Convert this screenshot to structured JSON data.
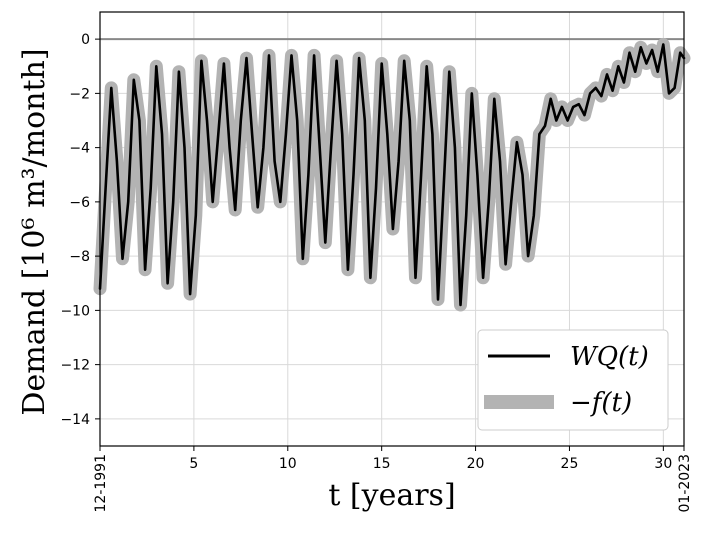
{
  "chart_data": {
    "type": "line",
    "xlabel": "t [years]",
    "ylabel": "Demand [10⁶ m³/month]",
    "xlim": [
      0,
      31.1
    ],
    "ylim": [
      -15,
      1
    ],
    "xticks": [
      {
        "value": 0,
        "label": "12-1991",
        "rotated": true
      },
      {
        "value": 5,
        "label": "5"
      },
      {
        "value": 10,
        "label": "10"
      },
      {
        "value": 15,
        "label": "15"
      },
      {
        "value": 20,
        "label": "20"
      },
      {
        "value": 25,
        "label": "25"
      },
      {
        "value": 30,
        "label": "30"
      },
      {
        "value": 31.1,
        "label": "01-2023",
        "rotated": true
      }
    ],
    "yticks": [
      0,
      -2,
      -4,
      -6,
      -8,
      -10,
      -12,
      -14
    ],
    "ytick_labels": [
      "0",
      "−2",
      "−4",
      "−6",
      "−8",
      "−10",
      "−12",
      "−14"
    ],
    "grid": true,
    "reference_line": {
      "y": 0,
      "color": "#888888"
    },
    "legend": {
      "position": "bottom-right"
    },
    "series": [
      {
        "name": "WQ(t)",
        "color": "#000000",
        "style": "thin-line",
        "x": [
          0.0,
          0.3,
          0.6,
          0.9,
          1.2,
          1.5,
          1.8,
          2.1,
          2.4,
          2.7,
          3.0,
          3.3,
          3.6,
          3.9,
          4.2,
          4.5,
          4.8,
          5.1,
          5.4,
          5.7,
          6.0,
          6.3,
          6.6,
          6.9,
          7.2,
          7.5,
          7.8,
          8.1,
          8.4,
          8.7,
          9.0,
          9.3,
          9.6,
          9.9,
          10.2,
          10.5,
          10.8,
          11.1,
          11.4,
          11.7,
          12.0,
          12.3,
          12.6,
          12.9,
          13.2,
          13.5,
          13.8,
          14.1,
          14.4,
          14.7,
          15.0,
          15.3,
          15.6,
          15.9,
          16.2,
          16.5,
          16.8,
          17.1,
          17.4,
          17.7,
          18.0,
          18.3,
          18.6,
          18.9,
          19.2,
          19.5,
          19.8,
          20.1,
          20.4,
          20.7,
          21.0,
          21.3,
          21.6,
          21.9,
          22.2,
          22.5,
          22.8,
          23.1,
          23.4,
          23.7,
          24.0,
          24.3,
          24.6,
          24.9,
          25.2,
          25.5,
          25.8,
          26.1,
          26.4,
          26.7,
          27.0,
          27.3,
          27.6,
          27.9,
          28.2,
          28.5,
          28.8,
          29.1,
          29.4,
          29.7,
          30.0,
          30.3,
          30.6,
          30.9,
          31.1
        ],
        "y": [
          -9.2,
          -5.5,
          -1.8,
          -4.5,
          -8.1,
          -6.0,
          -1.5,
          -3.0,
          -8.5,
          -5.5,
          -1.0,
          -3.5,
          -9.0,
          -6.0,
          -1.2,
          -4.0,
          -9.4,
          -6.5,
          -0.8,
          -3.0,
          -6.0,
          -3.5,
          -0.9,
          -4.0,
          -6.3,
          -3.0,
          -0.7,
          -3.5,
          -6.2,
          -4.0,
          -0.6,
          -4.5,
          -6.0,
          -3.5,
          -0.6,
          -3.0,
          -8.1,
          -5.0,
          -0.6,
          -4.0,
          -7.5,
          -4.0,
          -0.8,
          -3.5,
          -8.5,
          -5.0,
          -0.7,
          -3.0,
          -8.8,
          -5.5,
          -0.9,
          -3.5,
          -7.0,
          -4.5,
          -0.8,
          -3.0,
          -8.8,
          -5.0,
          -1.0,
          -3.5,
          -9.6,
          -5.5,
          -1.2,
          -4.0,
          -9.8,
          -6.5,
          -2.0,
          -5.0,
          -8.8,
          -6.0,
          -2.2,
          -4.5,
          -8.3,
          -6.0,
          -3.8,
          -5.0,
          -8.0,
          -6.5,
          -3.5,
          -3.2,
          -2.2,
          -3.0,
          -2.5,
          -3.0,
          -2.5,
          -2.4,
          -2.8,
          -2.0,
          -1.8,
          -2.1,
          -1.3,
          -1.9,
          -1.0,
          -1.6,
          -0.5,
          -1.2,
          -0.3,
          -0.9,
          -0.4,
          -1.2,
          -0.2,
          -2.0,
          -1.8,
          -0.5,
          -0.7
        ]
      },
      {
        "name": "−f(t)",
        "color": "#b3b3b3",
        "style": "thick-line",
        "x": [
          0.0,
          0.3,
          0.6,
          0.9,
          1.2,
          1.5,
          1.8,
          2.1,
          2.4,
          2.7,
          3.0,
          3.3,
          3.6,
          3.9,
          4.2,
          4.5,
          4.8,
          5.1,
          5.4,
          5.7,
          6.0,
          6.3,
          6.6,
          6.9,
          7.2,
          7.5,
          7.8,
          8.1,
          8.4,
          8.7,
          9.0,
          9.3,
          9.6,
          9.9,
          10.2,
          10.5,
          10.8,
          11.1,
          11.4,
          11.7,
          12.0,
          12.3,
          12.6,
          12.9,
          13.2,
          13.5,
          13.8,
          14.1,
          14.4,
          14.7,
          15.0,
          15.3,
          15.6,
          15.9,
          16.2,
          16.5,
          16.8,
          17.1,
          17.4,
          17.7,
          18.0,
          18.3,
          18.6,
          18.9,
          19.2,
          19.5,
          19.8,
          20.1,
          20.4,
          20.7,
          21.0,
          21.3,
          21.6,
          21.9,
          22.2,
          22.5,
          22.8,
          23.1,
          23.4,
          23.7,
          24.0,
          24.3,
          24.6,
          24.9,
          25.2,
          25.5,
          25.8,
          26.1,
          26.4,
          26.7,
          27.0,
          27.3,
          27.6,
          27.9,
          28.2,
          28.5,
          28.8,
          29.1,
          29.4,
          29.7,
          30.0,
          30.3,
          30.6,
          30.9,
          31.1
        ],
        "y": [
          -9.2,
          -5.5,
          -1.8,
          -4.5,
          -8.1,
          -6.0,
          -1.5,
          -3.0,
          -8.5,
          -5.5,
          -1.0,
          -3.5,
          -9.0,
          -6.0,
          -1.2,
          -4.0,
          -9.4,
          -6.5,
          -0.8,
          -3.0,
          -6.0,
          -3.5,
          -0.9,
          -4.0,
          -6.3,
          -3.0,
          -0.7,
          -3.5,
          -6.2,
          -4.0,
          -0.6,
          -4.5,
          -6.0,
          -3.5,
          -0.6,
          -3.0,
          -8.1,
          -5.0,
          -0.6,
          -4.0,
          -7.5,
          -4.0,
          -0.8,
          -3.5,
          -8.5,
          -5.0,
          -0.7,
          -3.0,
          -8.8,
          -5.5,
          -0.9,
          -3.5,
          -7.0,
          -4.5,
          -0.8,
          -3.0,
          -8.8,
          -5.0,
          -1.0,
          -3.5,
          -9.6,
          -5.5,
          -1.2,
          -4.0,
          -9.8,
          -6.5,
          -2.0,
          -5.0,
          -8.8,
          -6.0,
          -2.2,
          -4.5,
          -8.3,
          -6.0,
          -3.8,
          -5.0,
          -8.0,
          -6.5,
          -3.5,
          -3.2,
          -2.2,
          -3.0,
          -2.5,
          -3.0,
          -2.5,
          -2.4,
          -2.8,
          -2.0,
          -1.8,
          -2.1,
          -1.3,
          -1.9,
          -1.0,
          -1.6,
          -0.5,
          -1.2,
          -0.3,
          -0.9,
          -0.4,
          -1.2,
          -0.2,
          -2.0,
          -1.8,
          -0.5,
          -0.7
        ]
      }
    ]
  },
  "legend_labels": {
    "wq": "WQ(t)",
    "f": "−f(t)"
  },
  "labels": {
    "xlabel": "t [years]",
    "ylabel": "Demand [10⁶ m³/month]"
  }
}
